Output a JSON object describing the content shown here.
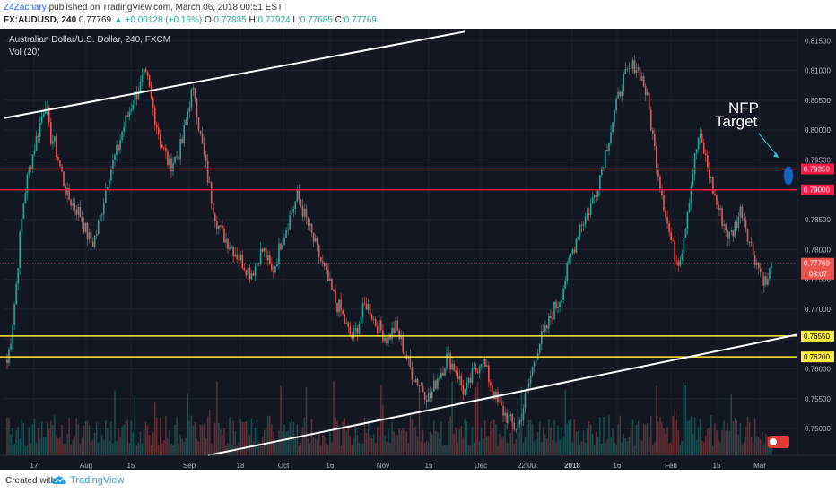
{
  "header": {
    "author": "Z4Zachary",
    "published_text": "published on TradingView.com, March 06, 2018 00:51 EST",
    "symbol": "FX:AUDUSD, 240",
    "last": "0.77769",
    "change": "+0.00128 (+0.16%)",
    "open_label": "O:",
    "open": "0.77835",
    "high_label": "H:",
    "high": "0.77924",
    "low_label": "L:",
    "low": "0.77685",
    "close_label": "C:",
    "close": "0.77769"
  },
  "legend": {
    "title": "Australian Dollar/U.S. Dollar, 240, FXCM",
    "volume": "Vol (20)"
  },
  "footer": {
    "created_with": "Created with",
    "brand": "TradingView"
  },
  "colors": {
    "background": "#131722",
    "up": "#26a69a",
    "down": "#ef5350",
    "resistance": "#ff1744",
    "support": "#ffeb3b",
    "trendline": "#ffffff",
    "arrow": "#26c6da",
    "target": "#1565c0"
  },
  "chart_data": {
    "type": "candlestick",
    "y_axis_ticks": [
      "0.81500",
      "0.81000",
      "0.80500",
      "0.80000",
      "0.79500",
      "0.79000",
      "0.78500",
      "0.78000",
      "0.77500",
      "0.77000",
      "0.76500",
      "0.76000",
      "0.75500",
      "0.75000"
    ],
    "x_axis_ticks": [
      "17",
      "Aug",
      "15",
      "Sep",
      "18",
      "Oct",
      "16",
      "Nov",
      "15",
      "Dec",
      "22:00",
      "2018",
      "16",
      "Feb",
      "15",
      "Mar"
    ],
    "ylim": [
      0.7455,
      0.817
    ],
    "price_path": [
      [
        0.761,
        0.766,
        0.773,
        0.782,
        0.789,
        0.793,
        0.796,
        0.799,
        0.802,
        0.805,
        0.799,
        0.798,
        0.795,
        0.792,
        0.789
      ],
      [
        0.788,
        0.787,
        0.786,
        0.784,
        0.782,
        0.781,
        0.783,
        0.786,
        0.79,
        0.793,
        0.795,
        0.797,
        0.8,
        0.802,
        0.804
      ],
      [
        0.806,
        0.807,
        0.809,
        0.808,
        0.804,
        0.801,
        0.798,
        0.796,
        0.794,
        0.795,
        0.796,
        0.798,
        0.802,
        0.806,
        0.806
      ],
      [
        0.8,
        0.796,
        0.792,
        0.788,
        0.785,
        0.783,
        0.782,
        0.781,
        0.78,
        0.779,
        0.778,
        0.777,
        0.776,
        0.777,
        0.779
      ],
      [
        0.78,
        0.778,
        0.776,
        0.778,
        0.781,
        0.783,
        0.785,
        0.787,
        0.789,
        0.787,
        0.785,
        0.783,
        0.781,
        0.779,
        0.777
      ],
      [
        0.775,
        0.773,
        0.771,
        0.77,
        0.768,
        0.766,
        0.765,
        0.767,
        0.769,
        0.771,
        0.77,
        0.768,
        0.767,
        0.766,
        0.765
      ],
      [
        0.766,
        0.767,
        0.765,
        0.763,
        0.761,
        0.759,
        0.758,
        0.757,
        0.756,
        0.755,
        0.757,
        0.759,
        0.76,
        0.762,
        0.761
      ],
      [
        0.76,
        0.758,
        0.756,
        0.757,
        0.759,
        0.76,
        0.762,
        0.76,
        0.758,
        0.756,
        0.754,
        0.753,
        0.752,
        0.751,
        0.75
      ],
      [
        0.751,
        0.754,
        0.757,
        0.76,
        0.763,
        0.765,
        0.766,
        0.768,
        0.77,
        0.771,
        0.773,
        0.776,
        0.779,
        0.781,
        0.784
      ],
      [
        0.785,
        0.786,
        0.788,
        0.79,
        0.793,
        0.796,
        0.799,
        0.802,
        0.805,
        0.808,
        0.809,
        0.81,
        0.811,
        0.81,
        0.808
      ],
      [
        0.805,
        0.8,
        0.795,
        0.791,
        0.787,
        0.783,
        0.78,
        0.778,
        0.78,
        0.785,
        0.79,
        0.795,
        0.799,
        0.797,
        0.794
      ],
      [
        0.791,
        0.788,
        0.786,
        0.784,
        0.782,
        0.783,
        0.785,
        0.787,
        0.784,
        0.781,
        0.779,
        0.777,
        0.775,
        0.774,
        0.7777
      ]
    ],
    "horizontal_levels": [
      {
        "value": 0.7935,
        "label": "0.79350",
        "kind": "resistance"
      },
      {
        "value": 0.79,
        "label": "0.79000",
        "kind": "resistance"
      },
      {
        "value": 0.7655,
        "label": "0.76550",
        "kind": "support"
      },
      {
        "value": 0.762,
        "label": "0.76200",
        "kind": "support"
      }
    ],
    "current_price": {
      "value": 0.77769,
      "label": "0.77769",
      "countdown": "08:07"
    },
    "annotation": {
      "text_line1": "NFP",
      "text_line2": "Target",
      "value": 0.7933
    }
  }
}
